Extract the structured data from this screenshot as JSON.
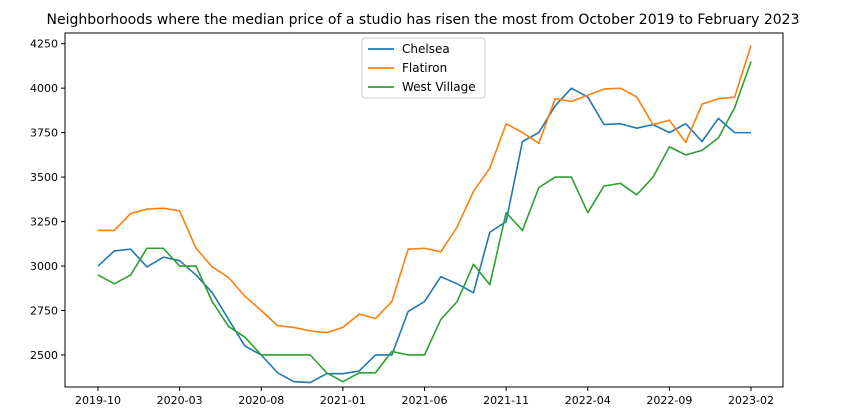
{
  "chart_data": {
    "type": "line",
    "title": "Neighborhoods where the median price of a studio has risen the most from October 2019 to February 2023",
    "xlabel": "",
    "ylabel": "",
    "x": [
      "2019-10",
      "2019-11",
      "2019-12",
      "2020-01",
      "2020-02",
      "2020-03",
      "2020-04",
      "2020-05",
      "2020-06",
      "2020-07",
      "2020-08",
      "2020-09",
      "2020-10",
      "2020-11",
      "2020-12",
      "2021-01",
      "2021-02",
      "2021-03",
      "2021-04",
      "2021-05",
      "2021-06",
      "2021-07",
      "2021-08",
      "2021-09",
      "2021-10",
      "2021-11",
      "2021-12",
      "2022-01",
      "2022-02",
      "2022-03",
      "2022-04",
      "2022-05",
      "2022-06",
      "2022-07",
      "2022-08",
      "2022-09",
      "2022-10",
      "2022-11",
      "2022-12",
      "2023-01",
      "2023-02"
    ],
    "xticks": [
      "2019-10",
      "2020-03",
      "2020-08",
      "2021-01",
      "2021-06",
      "2021-11",
      "2022-04",
      "2022-09",
      "2023-02"
    ],
    "yticks": [
      2500,
      2750,
      3000,
      3250,
      3500,
      3750,
      4000,
      4250
    ],
    "ylim": [
      2320,
      4310
    ],
    "grid": false,
    "legend_position": "top-center",
    "series": [
      {
        "name": "Chelsea",
        "color": "#1f77b4",
        "values": [
          3000,
          3085,
          3095,
          2995,
          3050,
          3030,
          2950,
          2850,
          2700,
          2550,
          2500,
          2400,
          2350,
          2345,
          2395,
          2395,
          2410,
          2500,
          2500,
          2745,
          2800,
          2940,
          2900,
          2850,
          3190,
          3250,
          3700,
          3750,
          3900,
          4000,
          3950,
          3795,
          3800,
          3775,
          3795,
          3750,
          3800,
          3700,
          3830,
          3750,
          3750
        ]
      },
      {
        "name": "Flatiron",
        "color": "#ff7f0e",
        "values": [
          3200,
          3200,
          3295,
          3320,
          3325,
          3310,
          3100,
          2995,
          2935,
          2830,
          2750,
          2665,
          2655,
          2635,
          2625,
          2655,
          2730,
          2705,
          2800,
          3095,
          3100,
          3080,
          3220,
          3420,
          3550,
          3800,
          3750,
          3690,
          3940,
          3925,
          3960,
          3995,
          4000,
          3950,
          3795,
          3820,
          3695,
          3910,
          3940,
          3950,
          4240
        ]
      },
      {
        "name": "West Village",
        "color": "#2ca02c",
        "values": [
          2950,
          2900,
          2950,
          3100,
          3100,
          3000,
          3000,
          2800,
          2660,
          2600,
          2500,
          2500,
          2500,
          2500,
          2400,
          2350,
          2400,
          2400,
          2520,
          2500,
          2500,
          2700,
          2800,
          3010,
          2895,
          3300,
          3200,
          3440,
          3500,
          3500,
          3300,
          3450,
          3465,
          3400,
          3500,
          3670,
          3625,
          3650,
          3720,
          3890,
          4150
        ]
      }
    ]
  }
}
